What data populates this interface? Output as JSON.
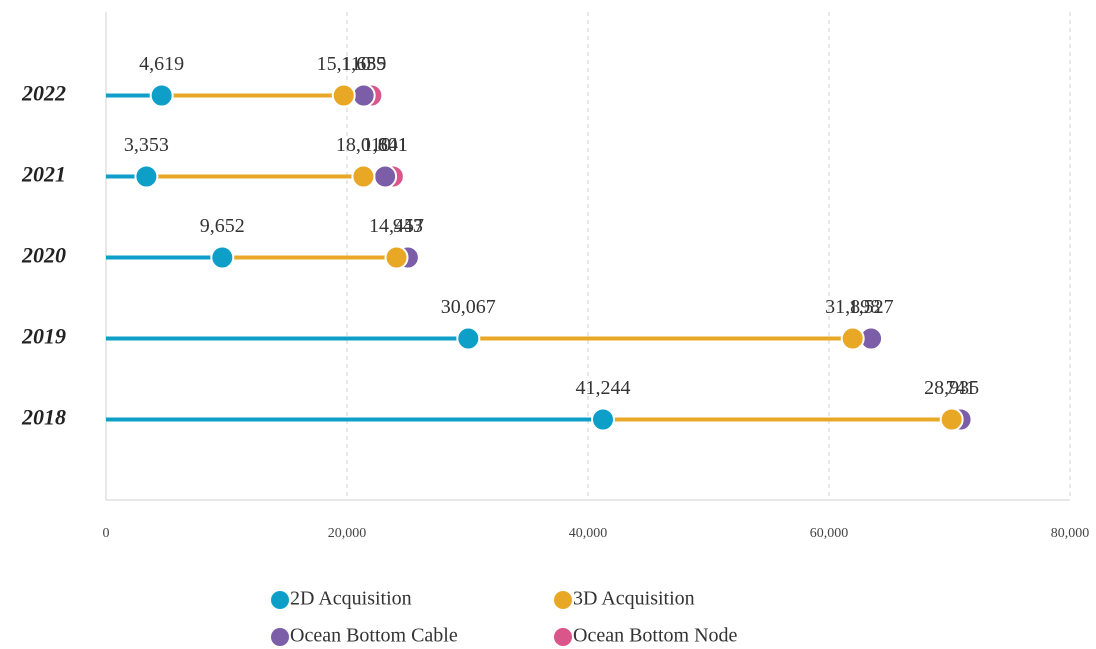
{
  "chart_data": {
    "type": "cumulative-dot",
    "categories": [
      "2022",
      "2021",
      "2020",
      "2019",
      "2018"
    ],
    "series": [
      {
        "name": "2D Acquisition",
        "color": "#0e9fc9",
        "values": [
          4619,
          3353,
          9652,
          30067,
          41244
        ],
        "value_labels": [
          "4,619",
          "3,353",
          "9,652",
          "30,067",
          "41,244"
        ]
      },
      {
        "name": "3D Acquisition",
        "color": "#e8a825",
        "values": [
          15110,
          18010,
          14457,
          31898,
          28935
        ],
        "value_labels": [
          "15,110",
          "18,010",
          "14,457",
          "31,898",
          "28,935"
        ]
      },
      {
        "name": "Ocean Bottom Cable",
        "color": "#7b5ea7",
        "values": [
          1655,
          1801,
          943,
          1527,
          741
        ],
        "value_labels": [
          "1,655",
          "1,801",
          "943",
          "1,527",
          "741"
        ]
      },
      {
        "name": "Ocean Bottom Node",
        "color": "#d9558a",
        "values": [
          639,
          641,
          null,
          null,
          null
        ],
        "value_labels": [
          "639",
          "641",
          null,
          null,
          null
        ]
      }
    ],
    "xlim": [
      0,
      80000
    ],
    "xticks": [
      0,
      {
        "value": 20000,
        "label": "20,000"
      },
      {
        "value": 40000,
        "label": "40,000"
      },
      {
        "value": 60000,
        "label": "60,000"
      },
      {
        "value": 80000,
        "label": "80,000"
      }
    ],
    "grid": true
  }
}
